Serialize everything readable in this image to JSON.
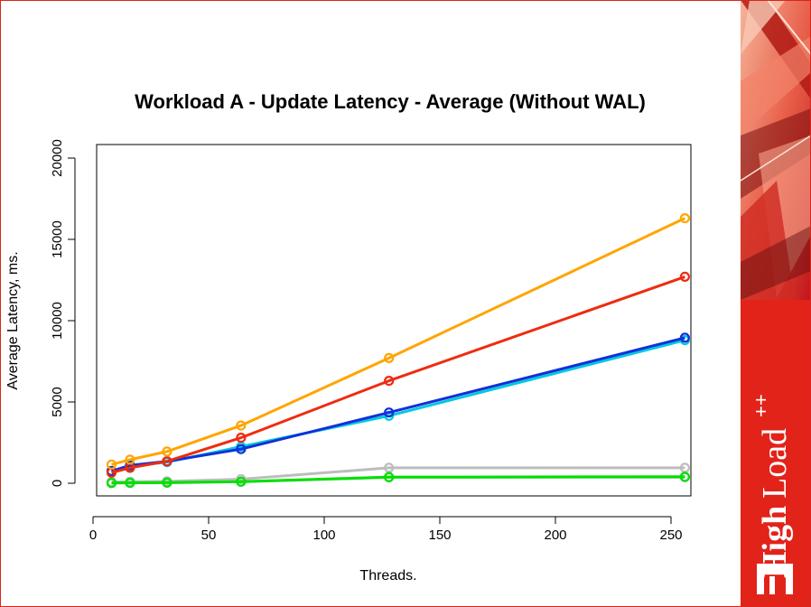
{
  "chart_data": {
    "type": "line",
    "title": "Workload A - Update Latency - Average (Without WAL)",
    "xlabel": "Threads.",
    "ylabel": "Average Latency, ms.",
    "xlim": [
      0,
      260
    ],
    "ylim": [
      0,
      20000
    ],
    "xticks": [
      0,
      50,
      100,
      150,
      200,
      250
    ],
    "yticks": [
      0,
      5000,
      10000,
      15000,
      20000
    ],
    "x": [
      8,
      16,
      32,
      64,
      128,
      256
    ],
    "grid": false,
    "legend": "none",
    "series": [
      {
        "color": "#ffa500",
        "values": [
          1150,
          1450,
          1950,
          3550,
          7700,
          16300
        ]
      },
      {
        "color": "#ee2c10",
        "values": [
          650,
          950,
          1350,
          2800,
          6300,
          12700
        ]
      },
      {
        "color": "#1230d8",
        "values": [
          750,
          1100,
          1350,
          2100,
          4350,
          8950
        ]
      },
      {
        "color": "#00c8e0",
        "values": [
          750,
          1050,
          1300,
          2250,
          4150,
          8800
        ]
      },
      {
        "color": "#bdbdbd",
        "values": [
          80,
          90,
          120,
          250,
          950,
          950
        ]
      },
      {
        "color": "#00e000",
        "values": [
          20,
          30,
          40,
          100,
          380,
          400
        ]
      },
      {
        "color": "#9bc9a7",
        "values": [
          10,
          20,
          30,
          90,
          360,
          370
        ]
      }
    ]
  },
  "brand": {
    "word_main": "High",
    "word_light": "Load",
    "superscript": "++",
    "colors": {
      "red": "#e2231a",
      "white": "#ffffff"
    }
  }
}
